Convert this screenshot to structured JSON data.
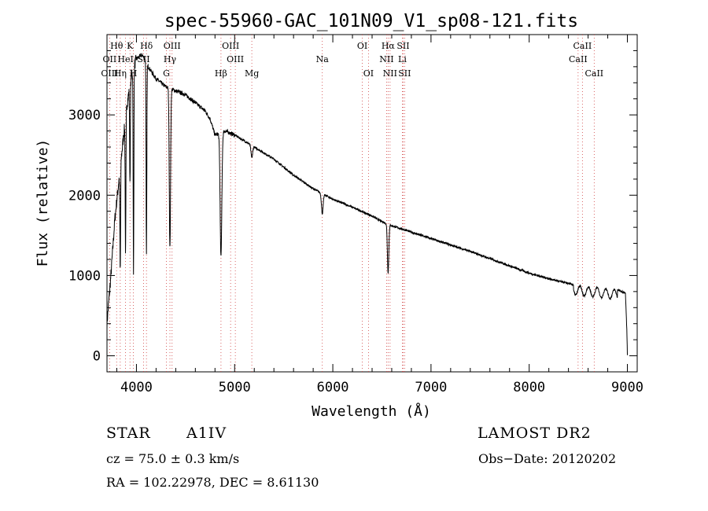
{
  "chart_data": {
    "type": "line",
    "title": "spec-55960-GAC_101N09_V1_sp08-121.fits",
    "xlabel": "Wavelength (Å)",
    "ylabel": "Flux (relative)",
    "xlim": [
      3700,
      9100
    ],
    "ylim": [
      -200,
      4000
    ],
    "x_ticks": [
      4000,
      5000,
      6000,
      7000,
      8000,
      9000
    ],
    "y_ticks": [
      0,
      1000,
      2000,
      3000
    ],
    "continuum": [
      [
        3700,
        400
      ],
      [
        3740,
        1000
      ],
      [
        3780,
        1700
      ],
      [
        3840,
        2400
      ],
      [
        3900,
        3100
      ],
      [
        3950,
        3500
      ],
      [
        4000,
        3700
      ],
      [
        4060,
        3750
      ],
      [
        4120,
        3600
      ],
      [
        4200,
        3450
      ],
      [
        4300,
        3350
      ],
      [
        4400,
        3300
      ],
      [
        4500,
        3250
      ],
      [
        4600,
        3150
      ],
      [
        4700,
        3050
      ],
      [
        4750,
        2950
      ],
      [
        4800,
        2750
      ],
      [
        4900,
        2800
      ],
      [
        5000,
        2750
      ],
      [
        5200,
        2600
      ],
      [
        5400,
        2450
      ],
      [
        5600,
        2250
      ],
      [
        5800,
        2080
      ],
      [
        6000,
        1950
      ],
      [
        6200,
        1850
      ],
      [
        6400,
        1740
      ],
      [
        6500,
        1670
      ],
      [
        6600,
        1620
      ],
      [
        6800,
        1540
      ],
      [
        7000,
        1460
      ],
      [
        7200,
        1380
      ],
      [
        7400,
        1300
      ],
      [
        7600,
        1210
      ],
      [
        7800,
        1120
      ],
      [
        8000,
        1030
      ],
      [
        8200,
        960
      ],
      [
        8400,
        900
      ],
      [
        8500,
        870
      ],
      [
        8700,
        850
      ],
      [
        8900,
        820
      ],
      [
        8980,
        780
      ],
      [
        8995,
        300
      ],
      [
        9000,
        0
      ]
    ],
    "absorption_lines": [
      {
        "name": "H-epsilon",
        "x": 3970,
        "depth": 2600
      },
      {
        "name": "H-delta",
        "x": 4102,
        "depth": 2400
      },
      {
        "name": "H-gamma",
        "x": 4341,
        "depth": 2000
      },
      {
        "name": "H-beta",
        "x": 4861,
        "depth": 1550
      },
      {
        "name": "H-alpha",
        "x": 6563,
        "depth": 600
      },
      {
        "name": "H8",
        "x": 3889,
        "depth": 1700
      },
      {
        "name": "H9",
        "x": 3835,
        "depth": 1300
      },
      {
        "name": "Ca K",
        "x": 3934,
        "depth": 1200
      },
      {
        "name": "Na",
        "x": 5893,
        "depth": 250
      },
      {
        "name": "Mg",
        "x": 5175,
        "depth": 150
      }
    ],
    "line_markers": [
      {
        "label": "Hθ",
        "x": 3798,
        "row": 1
      },
      {
        "label": "K",
        "x": 3934,
        "row": 1
      },
      {
        "label": "Hδ",
        "x": 4102,
        "row": 1
      },
      {
        "label": "OIII",
        "x": 4363,
        "row": 1
      },
      {
        "label": "OIII",
        "x": 4959,
        "row": 1
      },
      {
        "label": "OI",
        "x": 6300,
        "row": 1
      },
      {
        "label": "Hα",
        "x": 6563,
        "row": 1
      },
      {
        "label": "SII",
        "x": 6716,
        "row": 1
      },
      {
        "label": "CaII",
        "x": 8542,
        "row": 1
      },
      {
        "label": "OII",
        "x": 3727,
        "row": 2
      },
      {
        "label": "HeI",
        "x": 3889,
        "row": 2
      },
      {
        "label": "SII",
        "x": 4072,
        "row": 2
      },
      {
        "label": "Hγ",
        "x": 4341,
        "row": 2
      },
      {
        "label": "OIII",
        "x": 5007,
        "row": 2
      },
      {
        "label": "Na",
        "x": 5893,
        "row": 2
      },
      {
        "label": "NII",
        "x": 6548,
        "row": 2
      },
      {
        "label": "Li",
        "x": 6708,
        "row": 2
      },
      {
        "label": "CaII",
        "x": 8498,
        "row": 2
      },
      {
        "label": "OIII",
        "x": 3727,
        "row": 3
      },
      {
        "label": "Hη",
        "x": 3835,
        "row": 3
      },
      {
        "label": "H",
        "x": 3969,
        "row": 3
      },
      {
        "label": "G",
        "x": 4305,
        "row": 3
      },
      {
        "label": "Hβ",
        "x": 4861,
        "row": 3
      },
      {
        "label": "Mg",
        "x": 5175,
        "row": 3
      },
      {
        "label": "OI",
        "x": 6363,
        "row": 3
      },
      {
        "label": "NII",
        "x": 6583,
        "row": 3
      },
      {
        "label": "SII",
        "x": 6731,
        "row": 3
      },
      {
        "label": "CaII",
        "x": 8662,
        "row": 3
      }
    ],
    "dotted_lines": [
      3727,
      3798,
      3835,
      3889,
      3934,
      3969,
      4072,
      4102,
      4305,
      4341,
      4363,
      4861,
      4959,
      5007,
      5175,
      5893,
      6300,
      6363,
      6548,
      6563,
      6583,
      6708,
      6716,
      6731,
      8498,
      8542,
      8662
    ]
  },
  "info": {
    "object_type": "STAR",
    "subclass": "A1IV",
    "survey": "LAMOST DR2",
    "cz": "cz = 75.0 ± 0.3 km/s",
    "obs_date": "Obs−Date: 20120202",
    "radec": "RA = 102.22978, DEC =   8.61130"
  }
}
